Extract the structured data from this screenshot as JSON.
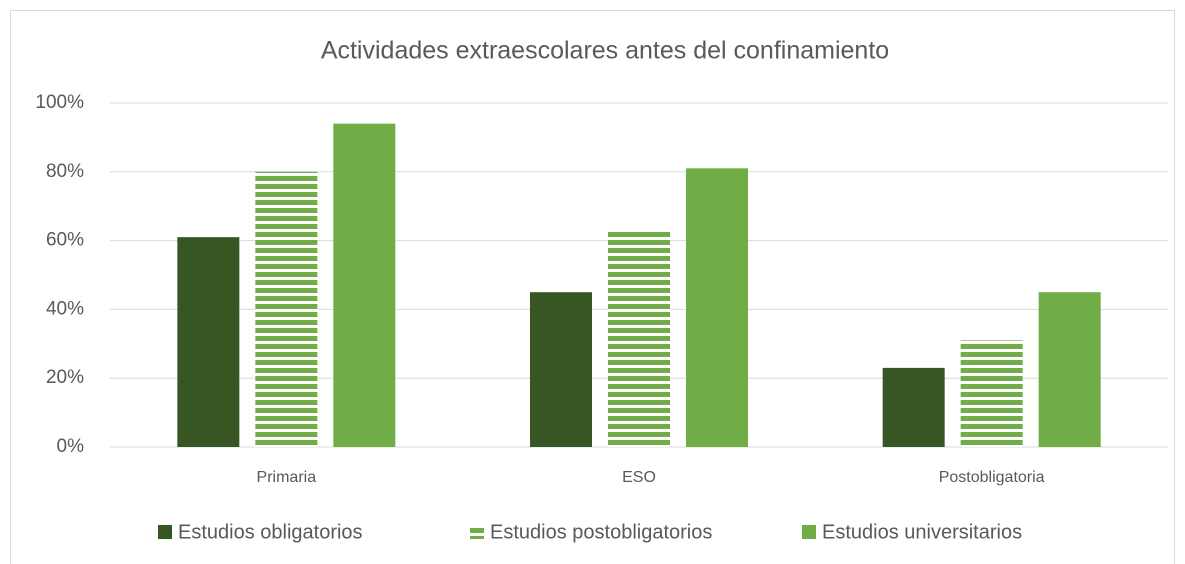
{
  "chart_data": {
    "type": "bar",
    "title": "Actividades extraescolares antes del confinamiento",
    "categories": [
      "Primaria",
      "ESO",
      "Postobligatoria"
    ],
    "series": [
      {
        "name": "Estudios obligatorios",
        "color": "#375623",
        "values": [
          61,
          45,
          23
        ]
      },
      {
        "name": "Estudios postobligatorios",
        "color": "#70ad47",
        "pattern": "horizontal-stripes",
        "values": [
          80,
          63,
          31
        ]
      },
      {
        "name": "Estudios universitarios",
        "color": "#70ad47",
        "values": [
          94,
          81,
          45
        ]
      }
    ],
    "ylim": [
      0,
      100
    ],
    "yticks": [
      {
        "value": 0,
        "label": "0%"
      },
      {
        "value": 20,
        "label": "20%"
      },
      {
        "value": 40,
        "label": "40%"
      },
      {
        "value": 60,
        "label": "60%"
      },
      {
        "value": 80,
        "label": "80%"
      },
      {
        "value": 100,
        "label": "100%"
      }
    ],
    "grid": true,
    "legend": "bottom"
  }
}
